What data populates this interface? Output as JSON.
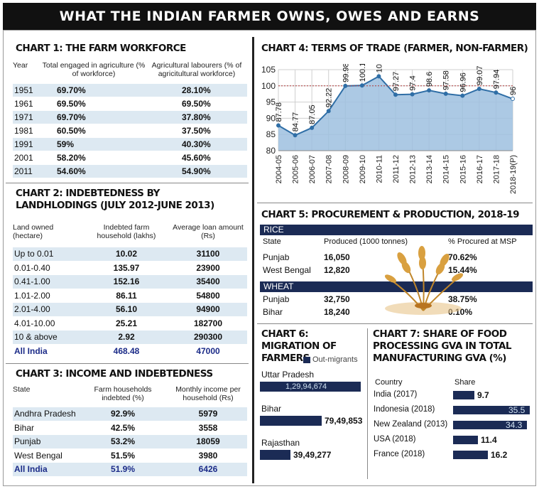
{
  "banner": "WHAT THE INDIAN FARMER OWNS, OWES AND EARNS",
  "chart1": {
    "title": "CHART 1: THE FARM WORKFORCE",
    "headers": [
      "Year",
      "Total engaged in agriculture (% of workforce)",
      "Agricultural labourers (% of agricitultural workforce)"
    ],
    "rows": [
      [
        "1951",
        "69.70%",
        "28.10%"
      ],
      [
        "1961",
        "69.50%",
        "69.50%"
      ],
      [
        "1971",
        "69.70%",
        "37.80%"
      ],
      [
        "1981",
        "60.50%",
        "37.50%"
      ],
      [
        "1991",
        "59%",
        "40.30%"
      ],
      [
        "2001",
        "58.20%",
        "45.60%"
      ],
      [
        "2011",
        "54.60%",
        "54.90%"
      ]
    ]
  },
  "chart2": {
    "title": "CHART 2: INDEBTEDNESS BY LANDHLODINGS (JULY 2012-JUNE 2013)",
    "headers": [
      "Land owned (hectare)",
      "Indebted farm household (lakhs)",
      "Average loan amount (Rs)"
    ],
    "rows": [
      [
        "Up to 0.01",
        "10.02",
        "31100"
      ],
      [
        "0.01-0.40",
        "135.97",
        "23900"
      ],
      [
        "0.41-1.00",
        "152.16",
        "35400"
      ],
      [
        "1.01-2.00",
        "86.11",
        "54800"
      ],
      [
        "2.01-4.00",
        "56.10",
        "94900"
      ],
      [
        "4.01-10.00",
        "25.21",
        "182700"
      ],
      [
        "10 & above",
        "2.92",
        "290300"
      ],
      [
        "All India",
        "468.48",
        "47000"
      ]
    ]
  },
  "chart3": {
    "title": "CHART 3: INCOME AND INDEBTEDNESS",
    "headers": [
      "State",
      "Farm households indebted (%)",
      "Monthly income per household (Rs)"
    ],
    "rows": [
      [
        "Andhra Pradesh",
        "92.9%",
        "5979"
      ],
      [
        "Bihar",
        "42.5%",
        "3558"
      ],
      [
        "Punjab",
        "53.2%",
        "18059"
      ],
      [
        "West Bengal",
        "51.5%",
        "3980"
      ],
      [
        "All India",
        "51.9%",
        "6426"
      ]
    ]
  },
  "chart_data": [
    {
      "type": "area",
      "title": "CHART 4: TERMS OF TRADE (FARMER, NON-FARMER)",
      "categories": [
        "2004-05",
        "2005-06",
        "2006-07",
        "2007-08",
        "2008-09",
        "2009-10",
        "2010-11",
        "2011-12",
        "2012-13",
        "2013-14",
        "2014-15",
        "2015-16",
        "2016-17",
        "2017-18",
        "2018-19(P)"
      ],
      "values": [
        87.78,
        84.77,
        87.05,
        92.22,
        99.98,
        100.13,
        102.95,
        97.27,
        97.4,
        98.6,
        97.58,
        96.96,
        99.07,
        97.94,
        96
      ],
      "data_labels": [
        "87.78",
        "84.77",
        "87.05",
        "92.22",
        "99.98",
        "100.13",
        "102.95",
        "97.27",
        "97.4",
        "98.6",
        "97.58",
        "96.96",
        "99.07",
        "97.94",
        "96"
      ],
      "ylim": [
        80,
        105
      ],
      "yticks": [
        "80",
        "85",
        "90",
        "95",
        "100",
        "105"
      ],
      "reference_line": 100,
      "grid": true,
      "colors": {
        "fill": "#9dbfdf",
        "line": "#2f6ea6",
        "reference": "#b23a3a"
      }
    },
    {
      "type": "bar",
      "title": "CHART 6: MIGRATION OF FARMERS",
      "legend": "Out-migrants",
      "categories": [
        "Uttar Pradesh",
        "Bihar",
        "Rajasthan"
      ],
      "values": [
        12994674,
        7949853,
        3949277
      ],
      "value_labels": [
        "1,29,94,674",
        "79,49,853",
        "39,49,277"
      ],
      "colors": {
        "bar": "#1b2b55"
      }
    },
    {
      "type": "bar",
      "title": "CHART 7: SHARE OF FOOD PROCESSING GVA IN TOTAL MANUFACTURING GVA (%)",
      "headers": [
        "Country",
        "Share"
      ],
      "categories": [
        "India (2017)",
        "Indonesia (2018)",
        "New Zealand (2013)",
        "USA (2018)",
        "France (2018)"
      ],
      "values": [
        9.7,
        35.5,
        34.3,
        11.4,
        16.2
      ],
      "value_labels": [
        "9.7",
        "35.5",
        "34.3",
        "11.4",
        "16.2"
      ],
      "colors": {
        "bar": "#1b2b55"
      }
    }
  ],
  "chart5": {
    "title": "CHART 5: PROCUREMENT & PRODUCTION, 2018-19",
    "rice_label": "RICE",
    "wheat_label": "WHEAT",
    "headers": [
      "State",
      "Produced (1000 tonnes)",
      "% Procured at MSP"
    ],
    "rice": [
      [
        "Punjab",
        "16,050",
        "70.62%"
      ],
      [
        "West Bengal",
        "12,820",
        "15.44%"
      ]
    ],
    "wheat": [
      [
        "Punjab",
        "32,750",
        "38.75%"
      ],
      [
        "Bihar",
        "18,240",
        "0.10%"
      ]
    ]
  }
}
